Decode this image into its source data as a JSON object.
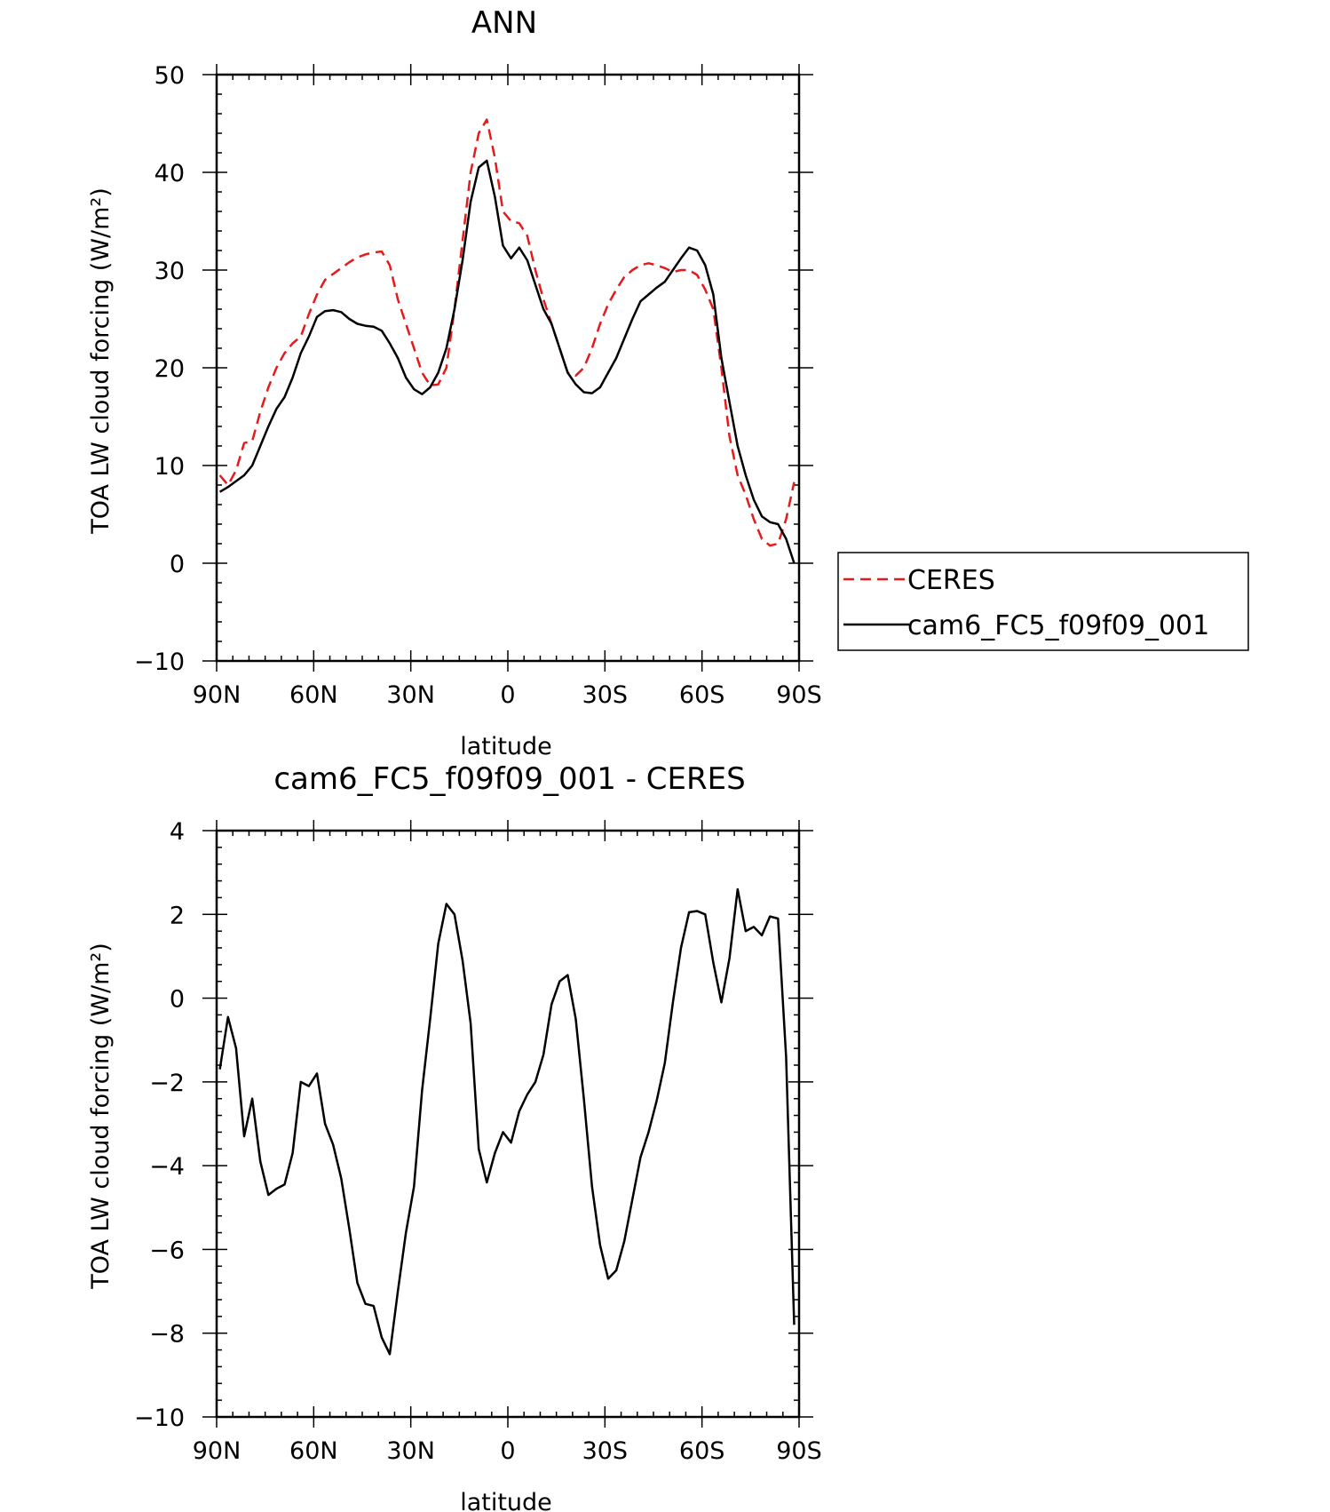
{
  "chart_data": [
    {
      "type": "line",
      "title": "ANN",
      "xlabel": "latitude",
      "ylabel": "TOA LW cloud forcing (W/m²)",
      "ylim": [
        -10,
        50
      ],
      "yticks": [
        -10,
        0,
        10,
        20,
        30,
        40,
        50
      ],
      "xlim": [
        90,
        -90
      ],
      "xticks": [
        {
          "value": 90,
          "label": "90N"
        },
        {
          "value": 60,
          "label": "60N"
        },
        {
          "value": 30,
          "label": "30N"
        },
        {
          "value": 0,
          "label": "0"
        },
        {
          "value": -30,
          "label": "30S"
        },
        {
          "value": -60,
          "label": "60S"
        },
        {
          "value": -90,
          "label": "90S"
        }
      ],
      "grid": false,
      "legend": "right",
      "x": [
        89,
        86.5,
        84,
        81.5,
        79,
        76.5,
        74,
        71.5,
        69,
        66.5,
        64,
        61.5,
        59,
        56.5,
        54,
        51.5,
        49,
        46.5,
        44,
        41.5,
        39,
        36.5,
        34,
        31.5,
        29,
        26.5,
        24,
        21.5,
        19,
        16.5,
        14,
        11.5,
        9,
        6.5,
        4,
        1.5,
        -1,
        -3.5,
        -6,
        -8.5,
        -11,
        -13.5,
        -16,
        -18.5,
        -21,
        -23.5,
        -26,
        -28.5,
        -31,
        -33.5,
        -36,
        -38.5,
        -41,
        -43.5,
        -46,
        -48.5,
        -51,
        -53.5,
        -56,
        -58.5,
        -61,
        -63.5,
        -66,
        -68.5,
        -71,
        -73.5,
        -76,
        -78.5,
        -81,
        -83.5,
        -86,
        -88.5
      ],
      "series": [
        {
          "name": "CERES",
          "color": "#e41a1c",
          "dash": true,
          "values": [
            9.0,
            8.0,
            9.5,
            12.3,
            12.5,
            15.5,
            18.0,
            20.0,
            21.5,
            22.5,
            23.2,
            25.5,
            27.5,
            29.0,
            29.6,
            30.2,
            30.8,
            31.3,
            31.6,
            31.8,
            31.9,
            30.5,
            27.0,
            24.5,
            22.0,
            19.5,
            18.2,
            18.3,
            20.0,
            26.0,
            33.0,
            40.0,
            44.0,
            45.4,
            41.5,
            36.0,
            35.0,
            34.8,
            33.5,
            30.0,
            27.0,
            24.5,
            22.0,
            19.5,
            19.2,
            20.0,
            22.0,
            24.5,
            26.5,
            28.0,
            29.3,
            30.0,
            30.5,
            30.7,
            30.5,
            30.2,
            29.8,
            30.0,
            30.0,
            29.5,
            28.0,
            26.0,
            20.0,
            13.0,
            9.0,
            7.0,
            4.5,
            2.5,
            1.8,
            2.0,
            4.5,
            8.3
          ]
        },
        {
          "name": "cam6_FC5_f09f09_001",
          "color": "#000000",
          "dash": false,
          "values": [
            7.3,
            7.8,
            8.4,
            9.0,
            10.0,
            12.0,
            14.0,
            15.8,
            17.0,
            19.0,
            21.5,
            23.2,
            25.2,
            25.8,
            25.9,
            25.7,
            25.0,
            24.5,
            24.3,
            24.2,
            23.8,
            22.5,
            21.0,
            19.0,
            17.8,
            17.3,
            18.0,
            19.5,
            22.0,
            26.0,
            31.0,
            37.0,
            40.5,
            41.2,
            37.5,
            32.5,
            31.2,
            32.3,
            31.0,
            28.5,
            26.0,
            24.5,
            22.0,
            19.5,
            18.3,
            17.5,
            17.4,
            18.0,
            19.5,
            21.0,
            23.0,
            25.0,
            26.8,
            27.5,
            28.2,
            28.8,
            30.0,
            31.2,
            32.3,
            32.0,
            30.5,
            27.5,
            21.0,
            16.5,
            12.0,
            9.0,
            6.5,
            4.8,
            4.2,
            4.0,
            2.5,
            0.0
          ]
        }
      ]
    },
    {
      "type": "line",
      "title": "cam6_FC5_f09f09_001 - CERES",
      "xlabel": "latitude",
      "ylabel": "TOA LW cloud forcing (W/m²)",
      "ylim": [
        -10,
        4
      ],
      "yticks": [
        -10,
        -8,
        -6,
        -4,
        -2,
        0,
        2,
        4
      ],
      "xlim": [
        90,
        -90
      ],
      "xticks": [
        {
          "value": 90,
          "label": "90N"
        },
        {
          "value": 60,
          "label": "60N"
        },
        {
          "value": 30,
          "label": "30N"
        },
        {
          "value": 0,
          "label": "0"
        },
        {
          "value": -30,
          "label": "30S"
        },
        {
          "value": -60,
          "label": "60S"
        },
        {
          "value": -90,
          "label": "90S"
        }
      ],
      "grid": false,
      "x": [
        89,
        86.5,
        84,
        81.5,
        79,
        76.5,
        74,
        71.5,
        69,
        66.5,
        64,
        61.5,
        59,
        56.5,
        54,
        51.5,
        49,
        46.5,
        44,
        41.5,
        39,
        36.5,
        34,
        31.5,
        29,
        26.5,
        24,
        21.5,
        19,
        16.5,
        14,
        11.5,
        9,
        6.5,
        4,
        1.5,
        -1,
        -3.5,
        -6,
        -8.5,
        -11,
        -13.5,
        -16,
        -18.5,
        -21,
        -23.5,
        -26,
        -28.5,
        -31,
        -33.5,
        -36,
        -38.5,
        -41,
        -43.5,
        -46,
        -48.5,
        -51,
        -53.5,
        -56,
        -58.5,
        -61,
        -63.5,
        -66,
        -68.5,
        -71,
        -73.5,
        -76,
        -78.5,
        -81,
        -83.5,
        -86,
        -88.5
      ],
      "series": [
        {
          "color": "#000000",
          "dash": false,
          "values": [
            -1.7,
            -0.45,
            -1.2,
            -3.3,
            -2.4,
            -3.9,
            -4.7,
            -4.55,
            -4.45,
            -3.7,
            -2.0,
            -2.1,
            -1.8,
            -3.0,
            -3.5,
            -4.3,
            -5.5,
            -6.8,
            -7.3,
            -7.35,
            -8.1,
            -8.5,
            -7.0,
            -5.6,
            -4.5,
            -2.2,
            -0.5,
            1.3,
            2.25,
            2.0,
            0.9,
            -0.6,
            -3.6,
            -4.4,
            -3.7,
            -3.2,
            -3.45,
            -2.7,
            -2.3,
            -2.0,
            -1.35,
            -0.15,
            0.4,
            0.55,
            -0.5,
            -2.4,
            -4.5,
            -5.9,
            -6.7,
            -6.5,
            -5.8,
            -4.8,
            -3.8,
            -3.2,
            -2.45,
            -1.55,
            -0.1,
            1.2,
            2.05,
            2.08,
            2.0,
            0.85,
            -0.1,
            0.95,
            2.6,
            1.6,
            1.7,
            1.5,
            1.95,
            1.9,
            -1.4,
            -7.8
          ]
        }
      ]
    }
  ]
}
